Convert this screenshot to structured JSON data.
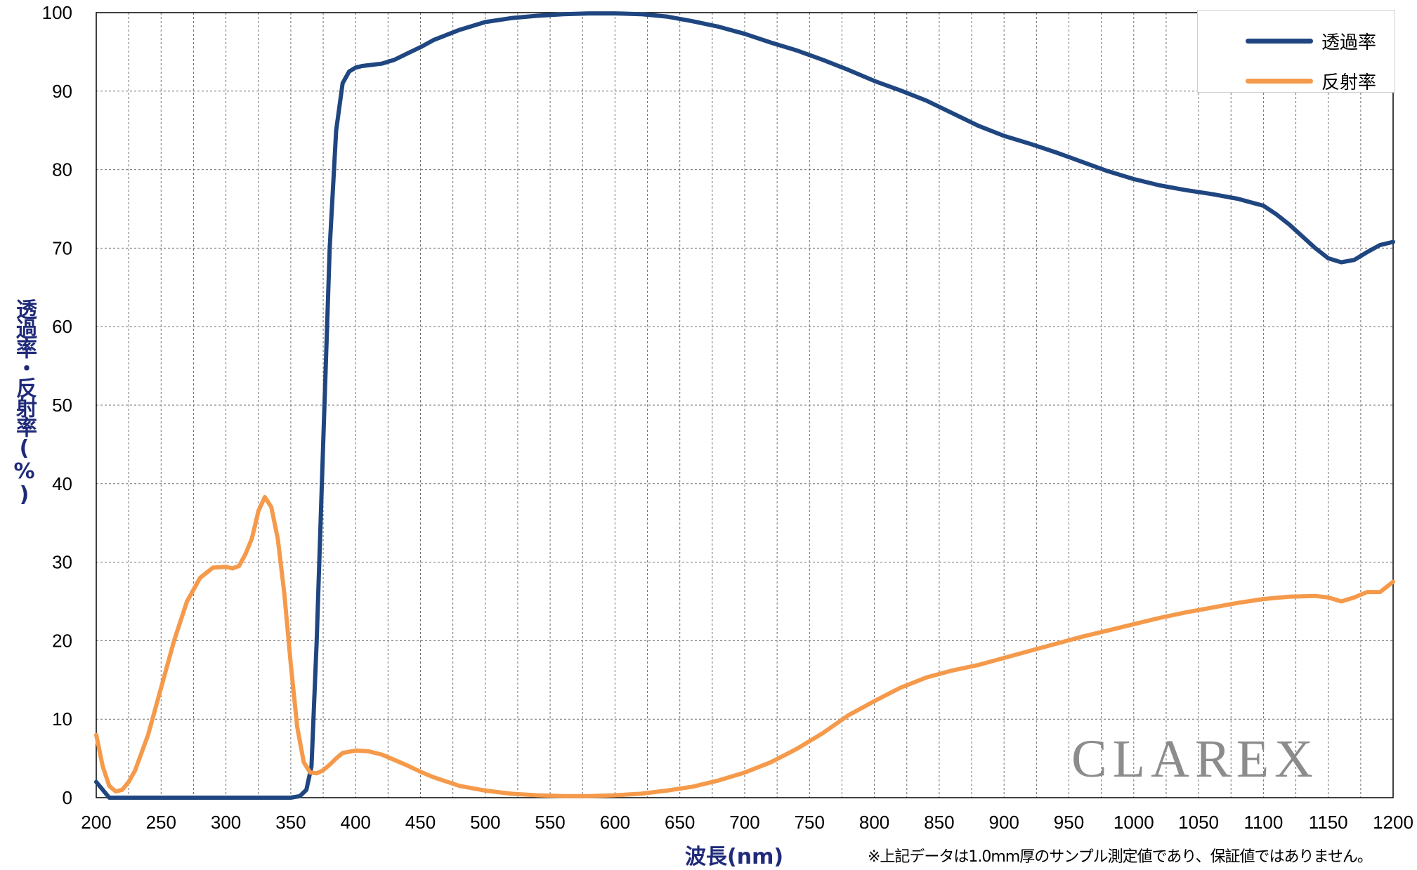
{
  "chart_data": {
    "type": "line",
    "title": "",
    "xlabel": "波長(nm)",
    "ylabel": "透過率・反射率(%)",
    "xlim": [
      200,
      1200
    ],
    "ylim": [
      0,
      100
    ],
    "xticks": [
      200,
      250,
      300,
      350,
      400,
      450,
      500,
      550,
      600,
      650,
      700,
      750,
      800,
      850,
      900,
      950,
      1000,
      1050,
      1100,
      1150,
      1200
    ],
    "yticks": [
      0,
      10,
      20,
      30,
      40,
      50,
      60,
      70,
      80,
      90,
      100
    ],
    "grid": "dashed, every 25 nm on x and every 10 % on y",
    "legend": "top-right",
    "series": [
      {
        "name": "透過率",
        "color": "#1f4680",
        "x": [
          200,
          210,
          220,
          250,
          300,
          350,
          357,
          362,
          366,
          370,
          375,
          380,
          385,
          390,
          395,
          400,
          405,
          410,
          420,
          430,
          440,
          450,
          460,
          480,
          500,
          520,
          540,
          560,
          580,
          600,
          620,
          640,
          660,
          680,
          700,
          720,
          740,
          760,
          780,
          800,
          820,
          840,
          860,
          880,
          900,
          920,
          940,
          960,
          980,
          1000,
          1020,
          1040,
          1060,
          1080,
          1100,
          1110,
          1120,
          1130,
          1140,
          1150,
          1160,
          1170,
          1180,
          1190,
          1200
        ],
        "y": [
          2,
          0,
          0,
          0,
          0,
          0,
          0.2,
          1,
          4,
          20,
          45,
          70,
          85,
          91,
          92.5,
          93,
          93.2,
          93.3,
          93.5,
          94,
          94.8,
          95.6,
          96.5,
          97.8,
          98.8,
          99.3,
          99.6,
          99.8,
          99.9,
          99.9,
          99.8,
          99.5,
          98.9,
          98.2,
          97.3,
          96.2,
          95.2,
          94,
          92.7,
          91.3,
          90.1,
          88.8,
          87.2,
          85.6,
          84.3,
          83.3,
          82.2,
          81,
          79.8,
          78.8,
          78,
          77.4,
          76.9,
          76.3,
          75.4,
          74.3,
          73,
          71.5,
          70,
          68.7,
          68.2,
          68.5,
          69.5,
          70.4,
          70.8
        ]
      },
      {
        "name": "反射率",
        "color": "#f59a4b",
        "x": [
          200,
          205,
          210,
          215,
          220,
          225,
          230,
          240,
          250,
          260,
          270,
          280,
          290,
          300,
          305,
          310,
          315,
          320,
          325,
          330,
          335,
          340,
          345,
          350,
          355,
          360,
          365,
          370,
          375,
          380,
          385,
          390,
          400,
          410,
          420,
          430,
          440,
          450,
          460,
          480,
          500,
          520,
          540,
          560,
          580,
          600,
          620,
          640,
          660,
          680,
          700,
          720,
          740,
          760,
          780,
          800,
          820,
          840,
          860,
          880,
          900,
          920,
          940,
          960,
          980,
          1000,
          1020,
          1040,
          1060,
          1080,
          1100,
          1120,
          1140,
          1150,
          1160,
          1170,
          1180,
          1190,
          1200
        ],
        "y": [
          8,
          4,
          1.5,
          0.8,
          1,
          2,
          3.5,
          8,
          14,
          20,
          25,
          28,
          29.3,
          29.4,
          29.2,
          29.5,
          31,
          33,
          36.5,
          38.3,
          37,
          33,
          26,
          17,
          9,
          4.5,
          3.2,
          3.1,
          3.5,
          4.2,
          5,
          5.7,
          6,
          5.9,
          5.5,
          4.8,
          4.1,
          3.3,
          2.6,
          1.5,
          0.9,
          0.5,
          0.3,
          0.2,
          0.2,
          0.3,
          0.5,
          0.9,
          1.4,
          2.2,
          3.2,
          4.5,
          6.2,
          8.2,
          10.5,
          12.3,
          14,
          15.3,
          16.2,
          16.9,
          17.8,
          18.7,
          19.6,
          20.5,
          21.3,
          22.1,
          22.9,
          23.6,
          24.2,
          24.8,
          25.3,
          25.6,
          25.7,
          25.5,
          25,
          25.5,
          26.2,
          26.2,
          27.5
        ]
      }
    ]
  },
  "legend": {
    "items": [
      {
        "label": "透過率"
      },
      {
        "label": "反射率"
      }
    ]
  },
  "watermark": "CLAREX",
  "note": "※上記データは1.0mm厚のサンプル測定値であり、保証値ではありません。"
}
